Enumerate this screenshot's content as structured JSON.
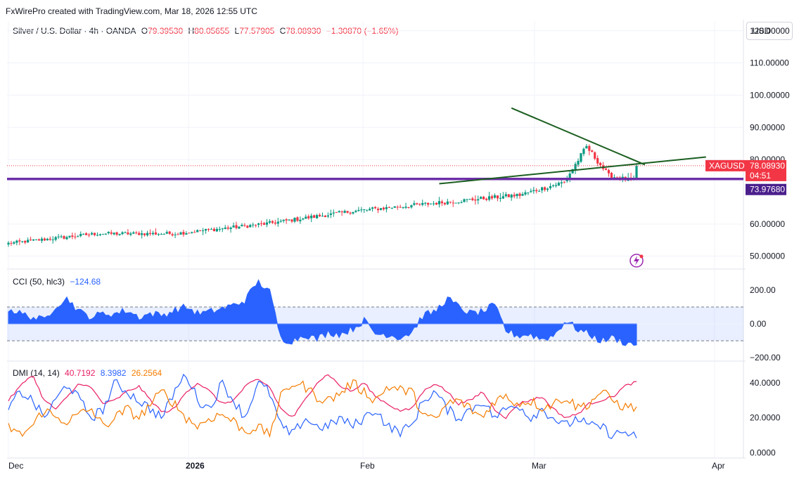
{
  "header": "FxWirePro created with TradingView.com, Mar 18, 2026 12:55 UTC",
  "currency_button": "USD",
  "legend": {
    "symbol": "Silver / U.S. Dollar · 4h · OANDA",
    "o_label": "O",
    "o_value": "79.39530",
    "h_label": "H",
    "h_value": "80.05655",
    "l_label": "L",
    "l_value": "77.57905",
    "c_label": "C",
    "c_value": "78.08930",
    "change": "−1.30870 (−1.65%)"
  },
  "cci_legend": {
    "name": "CCI (50, hlc3)",
    "value": "−124.68"
  },
  "dmi_legend": {
    "name": "DMI (14, 14)",
    "adx": "40.7192",
    "minus_di": "8.3982",
    "plus_di": "26.2564"
  },
  "price_tags": {
    "symbol": "XAGUSD",
    "last": "78.08930",
    "countdown": "04:51",
    "support": "73.97680"
  },
  "colors": {
    "up": "#089981",
    "down": "#f23645",
    "support": "#6d2fa8",
    "trend": "#1b5e20",
    "cci": "#2962ff",
    "adx": "#e91e63",
    "minus_di": "#2962ff",
    "plus_di": "#f57c00",
    "last_tag": "#f23645",
    "support_tag": "#4a1f8c"
  },
  "chart_data": [
    {
      "type": "candlestick",
      "title": "Silver / U.S. Dollar · 4h · OANDA",
      "ylabel": "USD",
      "x_labels": [
        "Dec",
        "2026",
        "Feb",
        "Mar",
        "Apr"
      ],
      "y_ticks": [
        "120.00000",
        "110.00000",
        "100.00000",
        "90.00000",
        "80.00000",
        "60.00000",
        "50.00000"
      ],
      "ylim": [
        46,
        123
      ],
      "price_path": [
        [
          0,
          54
        ],
        [
          8,
          57
        ],
        [
          15,
          57
        ],
        [
          23,
          60
        ],
        [
          27,
          62
        ],
        [
          31,
          64
        ],
        [
          40,
          67
        ],
        [
          46,
          69
        ],
        [
          50,
          73
        ],
        [
          52,
          84
        ],
        [
          54,
          75
        ],
        [
          58,
          72
        ],
        [
          62,
          75
        ],
        [
          66,
          78
        ],
        [
          70,
          79
        ],
        [
          73,
          82
        ],
        [
          79,
          87
        ],
        [
          84,
          91
        ],
        [
          89,
          93
        ],
        [
          95,
          91
        ],
        [
          101,
          96
        ],
        [
          105,
          98
        ],
        [
          108,
          108
        ],
        [
          111,
          115
        ],
        [
          113,
          121
        ],
        [
          116,
          112
        ],
        [
          119,
          103
        ],
        [
          120,
          95
        ],
        [
          121,
          82
        ],
        [
          123,
          78
        ],
        [
          126,
          86
        ],
        [
          128,
          92
        ],
        [
          130,
          84
        ],
        [
          133,
          75
        ],
        [
          135,
          73
        ],
        [
          137,
          80
        ],
        [
          140,
          86
        ],
        [
          142,
          83
        ],
        [
          144,
          85
        ],
        [
          147,
          77
        ],
        [
          149,
          80
        ],
        [
          153,
          76
        ],
        [
          157,
          74
        ],
        [
          160,
          73
        ],
        [
          163,
          75
        ],
        [
          167,
          80
        ],
        [
          171,
          88
        ],
        [
          176,
          90
        ],
        [
          181,
          96
        ],
        [
          184,
          91
        ],
        [
          186,
          80
        ],
        [
          189,
          85
        ],
        [
          193,
          83
        ],
        [
          198,
          81
        ],
        [
          203,
          89
        ],
        [
          207,
          87
        ],
        [
          211,
          82
        ],
        [
          215,
          80
        ],
        [
          218,
          79
        ],
        [
          221,
          78.1
        ]
      ],
      "support_level": 73.9768,
      "trendline_upper": [
        [
          181,
          96
        ],
        [
          229,
          78.4
        ]
      ],
      "trendline_lower": [
        [
          155,
          72.5
        ],
        [
          251,
          80.8
        ]
      ],
      "last_price": 78.0893
    },
    {
      "type": "line",
      "title": "CCI (50, hlc3)",
      "y_ticks": [
        "200.00",
        "0.00",
        "−200.00"
      ],
      "ylim": [
        -220,
        320
      ],
      "bands": [
        100,
        -100
      ],
      "series": [
        {
          "name": "CCI",
          "values": [
            90,
            60,
            40,
            20,
            110,
            150,
            70,
            40,
            60,
            60,
            80,
            40,
            60,
            50,
            80,
            100,
            60,
            70,
            90,
            110,
            140,
            250,
            200,
            -90,
            -100,
            -60,
            -90,
            -50,
            -60,
            -30,
            20,
            -60,
            -60,
            -80,
            -50,
            50,
            70,
            150,
            100,
            60,
            70,
            110,
            -40,
            -70,
            -60,
            -90,
            -70,
            20,
            -30,
            -60,
            -100,
            -80,
            -110,
            -124.68
          ]
        }
      ]
    },
    {
      "type": "line",
      "title": "DMI (14, 14)",
      "y_ticks": [
        "40.0000",
        "20.0000",
        "0.0000"
      ],
      "ylim": [
        -3,
        52
      ],
      "series": [
        {
          "name": "ADX",
          "values": [
            30,
            38,
            45,
            30,
            25,
            32,
            40,
            37,
            28,
            30,
            35,
            38,
            30,
            23,
            25,
            35,
            40,
            35,
            28,
            30,
            38,
            42,
            38,
            25,
            20,
            30,
            40,
            45,
            38,
            35,
            40,
            32,
            28,
            24,
            25,
            35,
            40,
            35,
            28,
            30,
            35,
            25,
            20,
            28,
            30,
            32,
            25,
            20,
            22,
            28,
            30,
            32,
            38,
            40.72
          ]
        },
        {
          "name": "-DI",
          "values": [
            25,
            35,
            30,
            20,
            30,
            40,
            30,
            20,
            25,
            40,
            35,
            30,
            25,
            20,
            35,
            45,
            30,
            25,
            40,
            30,
            20,
            40,
            35,
            15,
            10,
            20,
            15,
            15,
            20,
            15,
            20,
            25,
            15,
            12,
            15,
            30,
            35,
            25,
            20,
            25,
            30,
            20,
            25,
            28,
            20,
            25,
            20,
            15,
            20,
            15,
            15,
            10,
            12,
            8.4
          ]
        },
        {
          "name": "+DI",
          "values": [
            15,
            10,
            15,
            25,
            20,
            18,
            22,
            25,
            15,
            20,
            25,
            20,
            28,
            35,
            28,
            20,
            15,
            20,
            22,
            18,
            12,
            15,
            10,
            32,
            40,
            38,
            32,
            30,
            34,
            40,
            35,
            30,
            38,
            36,
            35,
            22,
            18,
            28,
            30,
            25,
            20,
            30,
            32,
            28,
            30,
            26,
            28,
            32,
            26,
            28,
            35,
            30,
            26,
            26.26
          ]
        }
      ]
    }
  ]
}
